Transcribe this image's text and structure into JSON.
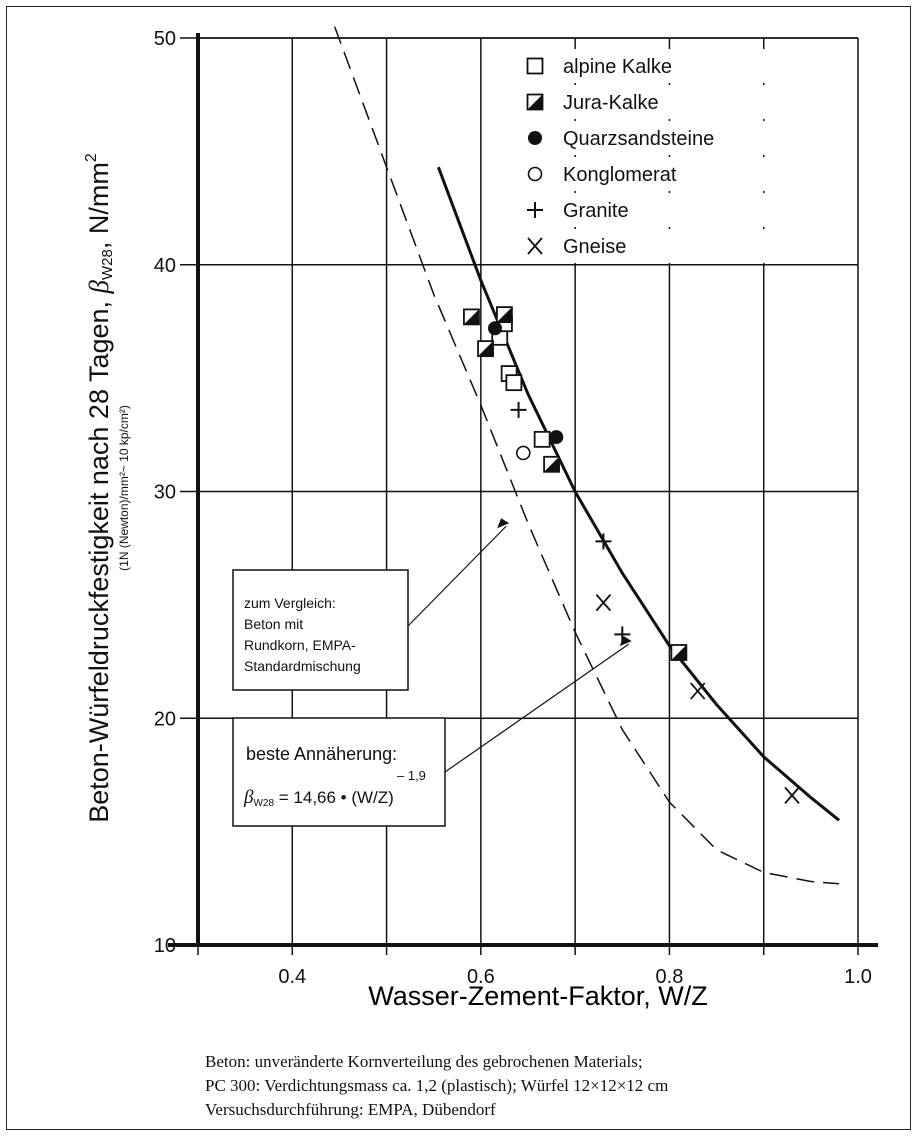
{
  "chart_data": {
    "type": "scatter",
    "xlabel": "Wasser-Zement-Faktor, W/Z",
    "ylabel": "Beton-Würfeldruckfestigkeit nach 28 Tagen, βW28, N/mm²",
    "ylabel_parts": {
      "main": "Beton-Würfeldruckfestigkeit nach 28 Tagen, ",
      "beta": "β",
      "sub": "W28",
      "unit": ", N/mm",
      "sup": "2"
    },
    "ylabel_note": "(1N (Newton)/mm²~ 10 kp/cm²)",
    "xlim": [
      0.3,
      1.0
    ],
    "ylim": [
      10,
      50
    ],
    "x_ticks": [
      {
        "value": 0.4,
        "label": "0.4"
      },
      {
        "value": 0.6,
        "label": "0.6"
      },
      {
        "value": 0.8,
        "label": "0.8"
      },
      {
        "value": 1.0,
        "label": "1.0"
      }
    ],
    "y_ticks": [
      {
        "value": 10,
        "label": "10"
      },
      {
        "value": 20,
        "label": "20"
      },
      {
        "value": 30,
        "label": "30"
      },
      {
        "value": 40,
        "label": "40"
      },
      {
        "value": 50,
        "label": "50"
      }
    ],
    "grid": true,
    "legend_position": "top-right",
    "series": [
      {
        "name": "alpine Kalke",
        "marker": "open-square",
        "points": [
          [
            0.62,
            36.8
          ],
          [
            0.625,
            37.4
          ],
          [
            0.63,
            35.2
          ],
          [
            0.635,
            34.8
          ],
          [
            0.665,
            32.3
          ]
        ]
      },
      {
        "name": "Jura-Kalke",
        "marker": "half-square",
        "points": [
          [
            0.59,
            37.7
          ],
          [
            0.605,
            36.3
          ],
          [
            0.625,
            37.8
          ],
          [
            0.675,
            31.2
          ],
          [
            0.81,
            22.9
          ]
        ]
      },
      {
        "name": "Quarzsandsteine",
        "marker": "filled-circle",
        "points": [
          [
            0.615,
            37.2
          ],
          [
            0.68,
            32.4
          ]
        ]
      },
      {
        "name": "Konglomerat",
        "marker": "open-circle",
        "points": [
          [
            0.645,
            31.7
          ]
        ]
      },
      {
        "name": "Granite",
        "marker": "plus",
        "points": [
          [
            0.64,
            33.6
          ],
          [
            0.73,
            27.8
          ],
          [
            0.75,
            23.7
          ]
        ]
      },
      {
        "name": "Gneise",
        "marker": "x",
        "points": [
          [
            0.73,
            25.1
          ],
          [
            0.83,
            21.2
          ],
          [
            0.93,
            16.6
          ]
        ]
      }
    ],
    "curves": [
      {
        "role": "fit",
        "style": "solid",
        "points": [
          [
            0.555,
            44.3
          ],
          [
            0.6,
            39.3
          ],
          [
            0.65,
            34.3
          ],
          [
            0.7,
            30.0
          ],
          [
            0.75,
            26.4
          ],
          [
            0.8,
            23.2
          ],
          [
            0.85,
            20.6
          ],
          [
            0.9,
            18.3
          ],
          [
            0.95,
            16.5
          ],
          [
            0.98,
            15.5
          ]
        ]
      },
      {
        "role": "comparison",
        "style": "dashed",
        "points": [
          [
            0.445,
            50.5
          ],
          [
            0.5,
            44.3
          ],
          [
            0.55,
            38.7
          ],
          [
            0.6,
            33.8
          ],
          [
            0.65,
            28.6
          ],
          [
            0.7,
            23.8
          ],
          [
            0.75,
            19.5
          ],
          [
            0.8,
            16.3
          ],
          [
            0.85,
            14.2
          ],
          [
            0.9,
            13.2
          ],
          [
            0.95,
            12.8
          ],
          [
            0.98,
            12.7
          ]
        ]
      }
    ],
    "annotations": [
      {
        "lines": [
          "zum Vergleich:",
          "Beton mit",
          "Rundkorn, EMPA-",
          "Standardmischung"
        ],
        "arrow_to": [
          0.63,
          28.6
        ]
      },
      {
        "title": "beste Annäherung:",
        "formula_beta": "β",
        "formula_sub": "W28",
        "formula_rest": " = 14,66 • (W/Z)",
        "formula_exp": "– 1,9",
        "arrow_to": [
          0.76,
          23.4
        ]
      }
    ]
  },
  "caption": [
    "Beton: unveränderte Kornverteilung des gebrochenen Materials;",
    "PC 300: Verdichtungsmass ca. 1,2 (plastisch); Würfel 12×12×12 cm",
    "Versuchsdurchführung: EMPA, Dübendorf"
  ]
}
